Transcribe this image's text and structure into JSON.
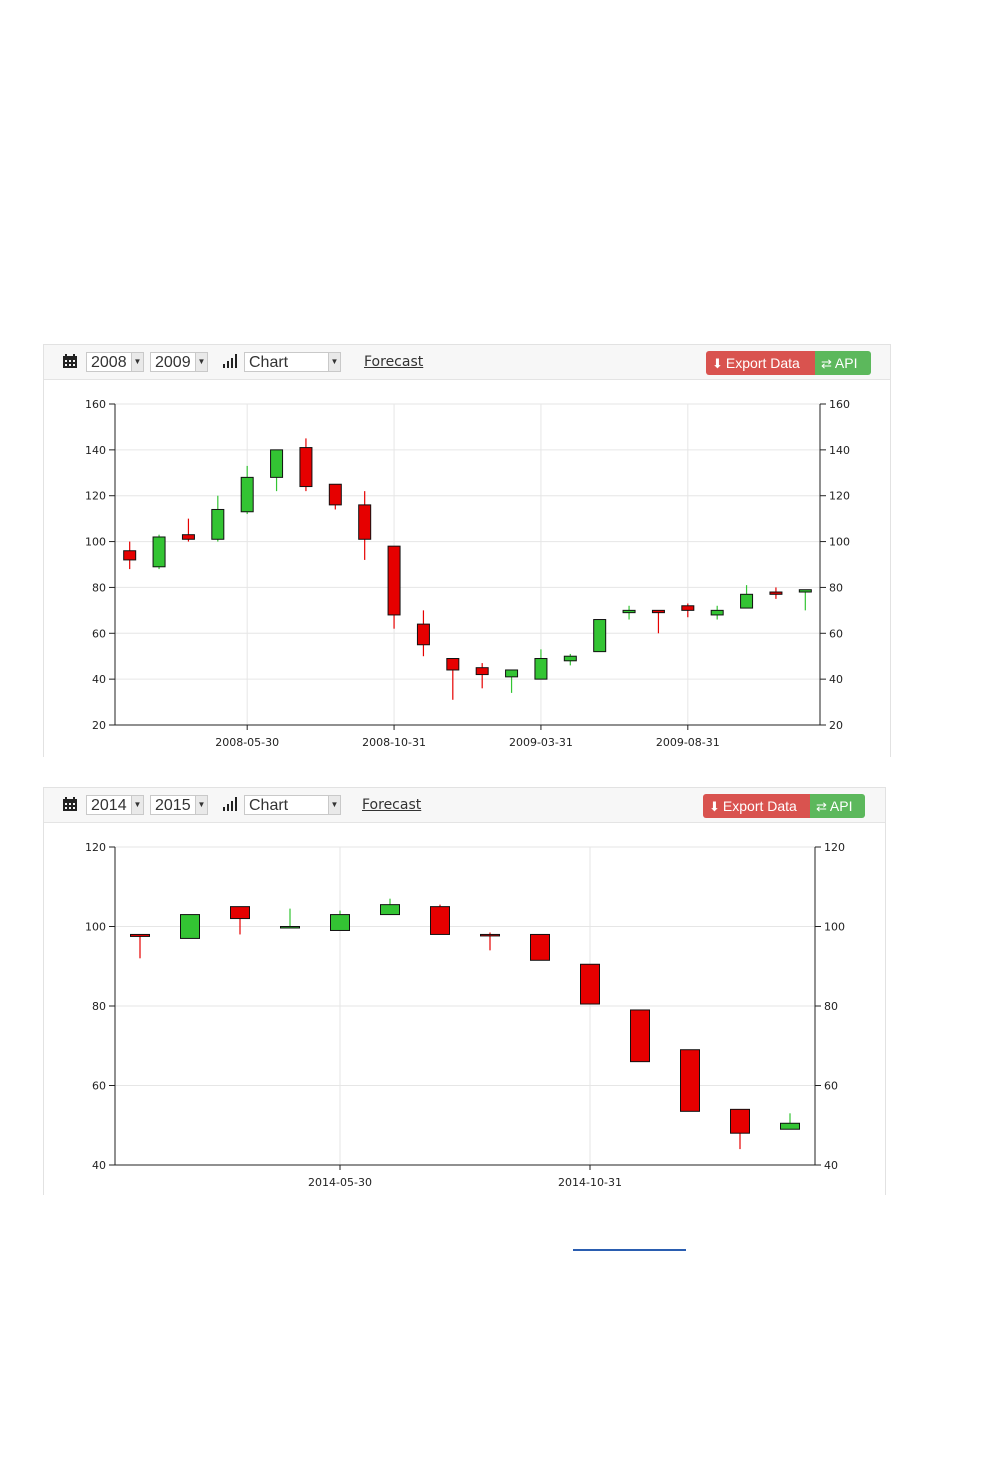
{
  "colors": {
    "up": "#33c433",
    "down": "#e60000",
    "export_btn": "#d9534f",
    "api_btn": "#5cb85c"
  },
  "panels": [
    {
      "toolbar": {
        "calendar_icon": "calendar-icon",
        "start_year": "2008",
        "end_year": "2009",
        "chart_icon": "bar-chart-icon",
        "chart_type": "Chart",
        "forecast_label": "Forecast",
        "export_label": "Export Data",
        "api_label": "API"
      }
    },
    {
      "toolbar": {
        "calendar_icon": "calendar-icon",
        "start_year": "2014",
        "end_year": "2015",
        "chart_icon": "bar-chart-icon",
        "chart_type": "Chart",
        "forecast_label": "Forecast",
        "export_label": "Export Data",
        "api_label": "API"
      }
    }
  ],
  "chart_data": [
    {
      "type": "candlestick",
      "ylim": [
        20,
        160
      ],
      "yticks": [
        20,
        40,
        60,
        80,
        100,
        120,
        140,
        160
      ],
      "x_tick_labels": [
        {
          "label": "2008-05-30",
          "index": 4
        },
        {
          "label": "2008-10-31",
          "index": 9
        },
        {
          "label": "2009-03-31",
          "index": 14
        },
        {
          "label": "2009-08-31",
          "index": 19
        }
      ],
      "grid": true,
      "candles": [
        {
          "open": 96,
          "close": 92,
          "high": 100,
          "low": 88
        },
        {
          "open": 89,
          "close": 102,
          "high": 103,
          "low": 88
        },
        {
          "open": 103,
          "close": 101,
          "high": 110,
          "low": 100
        },
        {
          "open": 101,
          "close": 114,
          "high": 120,
          "low": 100
        },
        {
          "open": 113,
          "close": 128,
          "high": 133,
          "low": 112
        },
        {
          "open": 128,
          "close": 140,
          "high": 140,
          "low": 122
        },
        {
          "open": 141,
          "close": 124,
          "high": 145,
          "low": 122
        },
        {
          "open": 125,
          "close": 116,
          "high": 125,
          "low": 114
        },
        {
          "open": 116,
          "close": 101,
          "high": 122,
          "low": 92
        },
        {
          "open": 98,
          "close": 68,
          "high": 98,
          "low": 62
        },
        {
          "open": 64,
          "close": 55,
          "high": 70,
          "low": 50
        },
        {
          "open": 49,
          "close": 44,
          "high": 49,
          "low": 31
        },
        {
          "open": 45,
          "close": 42,
          "high": 47,
          "low": 36
        },
        {
          "open": 41,
          "close": 44,
          "high": 44,
          "low": 34
        },
        {
          "open": 40,
          "close": 49,
          "high": 53,
          "low": 40
        },
        {
          "open": 48,
          "close": 50,
          "high": 51,
          "low": 46
        },
        {
          "open": 52,
          "close": 66,
          "high": 66,
          "low": 52
        },
        {
          "open": 69,
          "close": 70,
          "high": 72,
          "low": 66
        },
        {
          "open": 70,
          "close": 69,
          "high": 70,
          "low": 60
        },
        {
          "open": 72,
          "close": 70,
          "high": 73,
          "low": 67
        },
        {
          "open": 68,
          "close": 70,
          "high": 72,
          "low": 66
        },
        {
          "open": 71,
          "close": 77,
          "high": 81,
          "low": 71
        },
        {
          "open": 78,
          "close": 77,
          "high": 80,
          "low": 75
        },
        {
          "open": 78,
          "close": 79,
          "high": 79,
          "low": 70
        }
      ]
    },
    {
      "type": "candlestick",
      "ylim": [
        40,
        120
      ],
      "yticks": [
        40,
        60,
        80,
        100,
        120
      ],
      "x_tick_labels": [
        {
          "label": "2014-05-30",
          "index": 4
        },
        {
          "label": "2014-10-31",
          "index": 9
        }
      ],
      "grid": true,
      "candles": [
        {
          "open": 98,
          "close": 97.5,
          "high": 98,
          "low": 92
        },
        {
          "open": 97,
          "close": 103,
          "high": 103,
          "low": 97
        },
        {
          "open": 105,
          "close": 102,
          "high": 105,
          "low": 98
        },
        {
          "open": 100,
          "close": 100,
          "high": 104.5,
          "low": 100
        },
        {
          "open": 99,
          "close": 103,
          "high": 104,
          "low": 99
        },
        {
          "open": 103,
          "close": 105.5,
          "high": 107,
          "low": 103
        },
        {
          "open": 105,
          "close": 98,
          "high": 105.5,
          "low": 98
        },
        {
          "open": 98,
          "close": 97.8,
          "high": 98.5,
          "low": 94
        },
        {
          "open": 98,
          "close": 91.5,
          "high": 98,
          "low": 91.5
        },
        {
          "open": 90.5,
          "close": 80.5,
          "high": 90.5,
          "low": 80.5
        },
        {
          "open": 79,
          "close": 66,
          "high": 79,
          "low": 66
        },
        {
          "open": 69,
          "close": 53.5,
          "high": 69,
          "low": 53.5
        },
        {
          "open": 54,
          "close": 48,
          "high": 54,
          "low": 44
        },
        {
          "open": 49,
          "close": 50.5,
          "high": 53,
          "low": 49
        }
      ]
    }
  ]
}
